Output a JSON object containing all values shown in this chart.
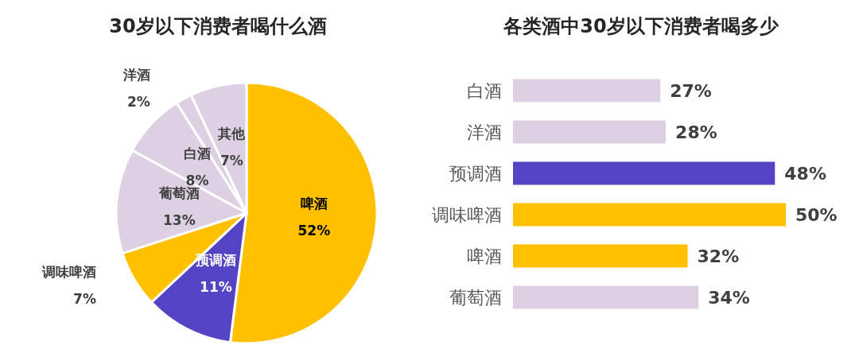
{
  "chart_data": [
    {
      "type": "pie",
      "title": "30岁以下消费者喝什么酒",
      "categories": [
        "啤酒",
        "预调酒",
        "调味啤酒",
        "葡萄酒",
        "白酒",
        "洋酒",
        "其他"
      ],
      "values": [
        52,
        11,
        7,
        13,
        8,
        2,
        7
      ],
      "colors": [
        "#ffc000",
        "#5443c3",
        "#ffc000",
        "#ddd0e3",
        "#ddd0e3",
        "#ddd0e3",
        "#ddd0e3"
      ],
      "value_labels": [
        "52%",
        "11%",
        "7%",
        "13%",
        "8%",
        "2%",
        "7%"
      ]
    },
    {
      "type": "bar",
      "orientation": "horizontal",
      "title": "各类酒中30岁以下消费者喝多少",
      "categories": [
        "白酒",
        "洋酒",
        "预调酒",
        "调味啤酒",
        "啤酒",
        "葡萄酒"
      ],
      "values": [
        27,
        28,
        48,
        50,
        32,
        34
      ],
      "colors": [
        "#ddd0e3",
        "#ddd0e3",
        "#5443c3",
        "#ffc000",
        "#ffc000",
        "#ddd0e3"
      ],
      "value_labels": [
        "27%",
        "28%",
        "48%",
        "50%",
        "32%",
        "34%"
      ]
    }
  ]
}
